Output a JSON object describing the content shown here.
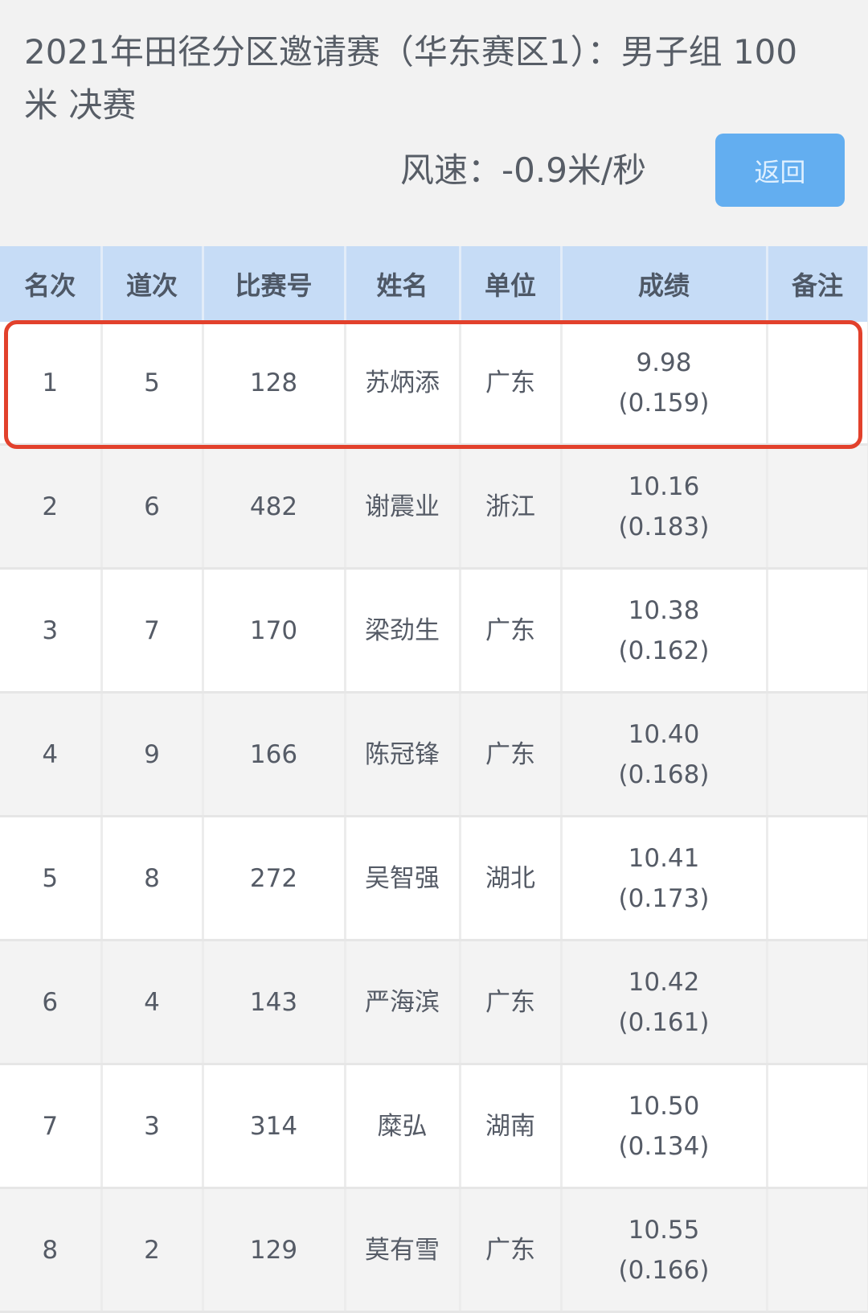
{
  "header": {
    "title": "2021年田径分区邀请赛（华东赛区1）：男子组 100米 决赛",
    "wind": "风速：-0.9米/秒",
    "back_label": "返回"
  },
  "colors": {
    "accent": "#63aef0",
    "header_bg": "#c6dcf6",
    "highlight": "#e2412c"
  },
  "table": {
    "columns": [
      "名次",
      "道次",
      "比赛号",
      "姓名",
      "单位",
      "成绩",
      "备注"
    ],
    "rows": [
      {
        "rank": "1",
        "lane": "5",
        "bib": "128",
        "name": "苏炳添",
        "unit": "广东",
        "time": "9.98",
        "reaction": "(0.159)",
        "note": ""
      },
      {
        "rank": "2",
        "lane": "6",
        "bib": "482",
        "name": "谢震业",
        "unit": "浙江",
        "time": "10.16",
        "reaction": "(0.183)",
        "note": ""
      },
      {
        "rank": "3",
        "lane": "7",
        "bib": "170",
        "name": "梁劲生",
        "unit": "广东",
        "time": "10.38",
        "reaction": "(0.162)",
        "note": ""
      },
      {
        "rank": "4",
        "lane": "9",
        "bib": "166",
        "name": "陈冠锋",
        "unit": "广东",
        "time": "10.40",
        "reaction": "(0.168)",
        "note": ""
      },
      {
        "rank": "5",
        "lane": "8",
        "bib": "272",
        "name": "吴智强",
        "unit": "湖北",
        "time": "10.41",
        "reaction": "(0.173)",
        "note": ""
      },
      {
        "rank": "6",
        "lane": "4",
        "bib": "143",
        "name": "严海滨",
        "unit": "广东",
        "time": "10.42",
        "reaction": "(0.161)",
        "note": ""
      },
      {
        "rank": "7",
        "lane": "3",
        "bib": "314",
        "name": "糜弘",
        "unit": "湖南",
        "time": "10.50",
        "reaction": "(0.134)",
        "note": ""
      },
      {
        "rank": "8",
        "lane": "2",
        "bib": "129",
        "name": "莫有雪",
        "unit": "广东",
        "time": "10.55",
        "reaction": "(0.166)",
        "note": ""
      }
    ]
  }
}
